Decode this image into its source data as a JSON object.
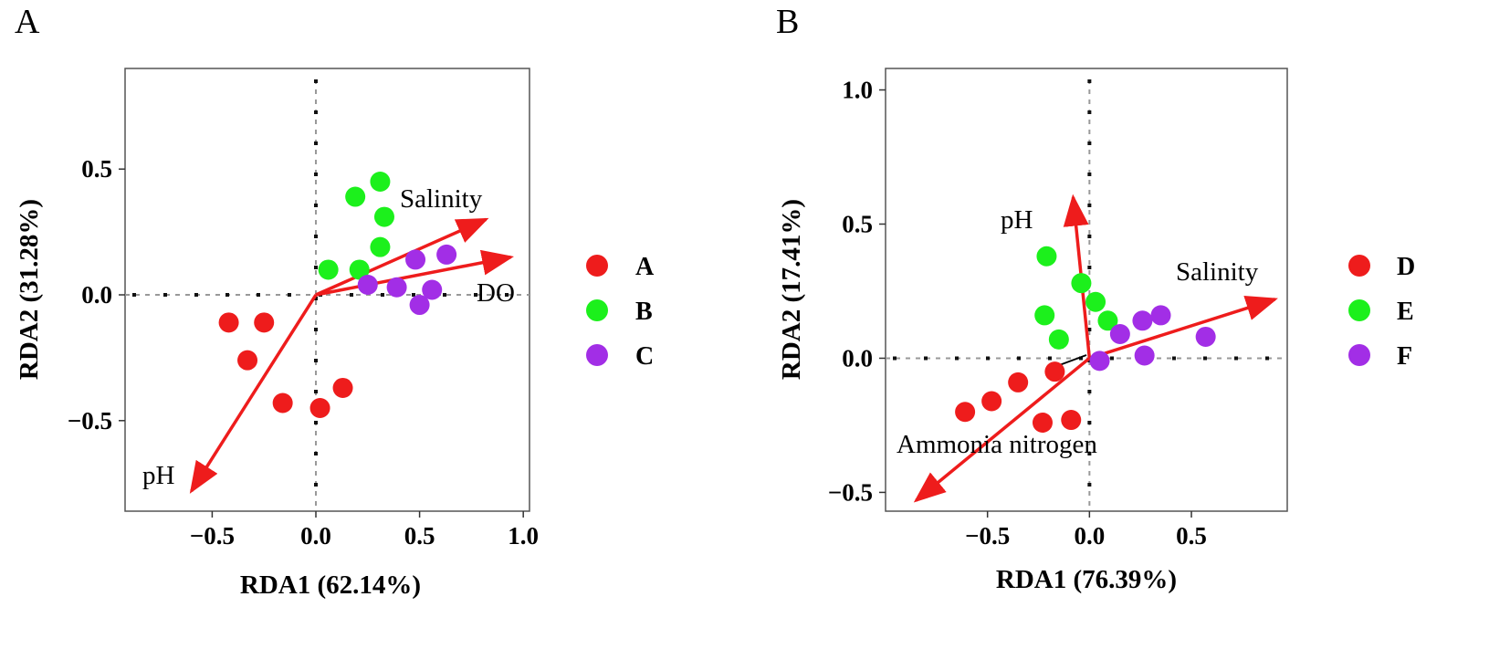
{
  "colors": {
    "A": "#ee1c1c",
    "B": "#1cf01c",
    "C": "#a22ee6",
    "D": "#ee1c1c",
    "E": "#1cf01c",
    "F": "#a22ee6",
    "arrow": "#ee1c1c"
  },
  "chart_data": [
    {
      "type": "scatter",
      "panel": "A",
      "xlabel": "RDA1 (62.14%)",
      "ylabel": "RDA2 (31.28%)",
      "xlim": [
        -0.92,
        1.03
      ],
      "ylim": [
        -0.86,
        0.9
      ],
      "xticks": [
        -0.5,
        0.0,
        0.5,
        1.0
      ],
      "xtick_labels": [
        "−0.5",
        "0.0",
        "0.5",
        "1.0"
      ],
      "yticks": [
        -0.5,
        0.0,
        0.5
      ],
      "ytick_labels": [
        "−0.5",
        "0.0",
        "0.5"
      ],
      "legend": [
        "A",
        "B",
        "C"
      ],
      "series": [
        {
          "name": "A",
          "points": [
            [
              -0.42,
              -0.11
            ],
            [
              -0.25,
              -0.11
            ],
            [
              -0.33,
              -0.26
            ],
            [
              -0.16,
              -0.43
            ],
            [
              0.02,
              -0.45
            ],
            [
              0.13,
              -0.37
            ]
          ]
        },
        {
          "name": "B",
          "points": [
            [
              0.06,
              0.1
            ],
            [
              0.21,
              0.1
            ],
            [
              0.31,
              0.19
            ],
            [
              0.19,
              0.39
            ],
            [
              0.31,
              0.45
            ],
            [
              0.33,
              0.31
            ]
          ]
        },
        {
          "name": "C",
          "points": [
            [
              0.25,
              0.04
            ],
            [
              0.39,
              0.03
            ],
            [
              0.48,
              0.14
            ],
            [
              0.63,
              0.16
            ],
            [
              0.56,
              0.02
            ],
            [
              0.5,
              -0.04
            ]
          ]
        }
      ],
      "arrows": [
        {
          "label": "Salinity",
          "x": 0.82,
          "y": 0.3
        },
        {
          "label": "DO",
          "x": 0.94,
          "y": 0.15
        },
        {
          "label": "pH",
          "x": -0.6,
          "y": -0.78
        }
      ]
    },
    {
      "type": "scatter",
      "panel": "B",
      "xlabel": "RDA1 (76.39%)",
      "ylabel": "RDA2 (17.41%)",
      "xlim": [
        -1.0,
        0.97
      ],
      "ylim": [
        -0.57,
        1.08
      ],
      "xticks": [
        -0.5,
        0.0,
        0.5
      ],
      "xtick_labels": [
        "−0.5",
        "0.0",
        "0.5"
      ],
      "yticks": [
        -0.5,
        0.0,
        0.5,
        1.0
      ],
      "ytick_labels": [
        "−0.5",
        "0.0",
        "0.5",
        "1.0"
      ],
      "legend": [
        "D",
        "E",
        "F"
      ],
      "series": [
        {
          "name": "D",
          "points": [
            [
              -0.61,
              -0.2
            ],
            [
              -0.48,
              -0.16
            ],
            [
              -0.35,
              -0.09
            ],
            [
              -0.17,
              -0.05
            ],
            [
              -0.23,
              -0.24
            ],
            [
              -0.09,
              -0.23
            ]
          ]
        },
        {
          "name": "E",
          "points": [
            [
              -0.21,
              0.38
            ],
            [
              -0.22,
              0.16
            ],
            [
              -0.15,
              0.07
            ],
            [
              -0.04,
              0.28
            ],
            [
              0.03,
              0.21
            ],
            [
              0.09,
              0.14
            ]
          ]
        },
        {
          "name": "F",
          "points": [
            [
              0.05,
              -0.01
            ],
            [
              0.15,
              0.09
            ],
            [
              0.26,
              0.14
            ],
            [
              0.35,
              0.16
            ],
            [
              0.57,
              0.08
            ],
            [
              0.27,
              0.01
            ]
          ]
        }
      ],
      "arrows": [
        {
          "label": "pH",
          "x": -0.08,
          "y": 0.6
        },
        {
          "label": "Salinity",
          "x": 0.91,
          "y": 0.22
        },
        {
          "label": "Ammonia nitrogen",
          "x": -0.85,
          "y": -0.53
        }
      ]
    }
  ]
}
